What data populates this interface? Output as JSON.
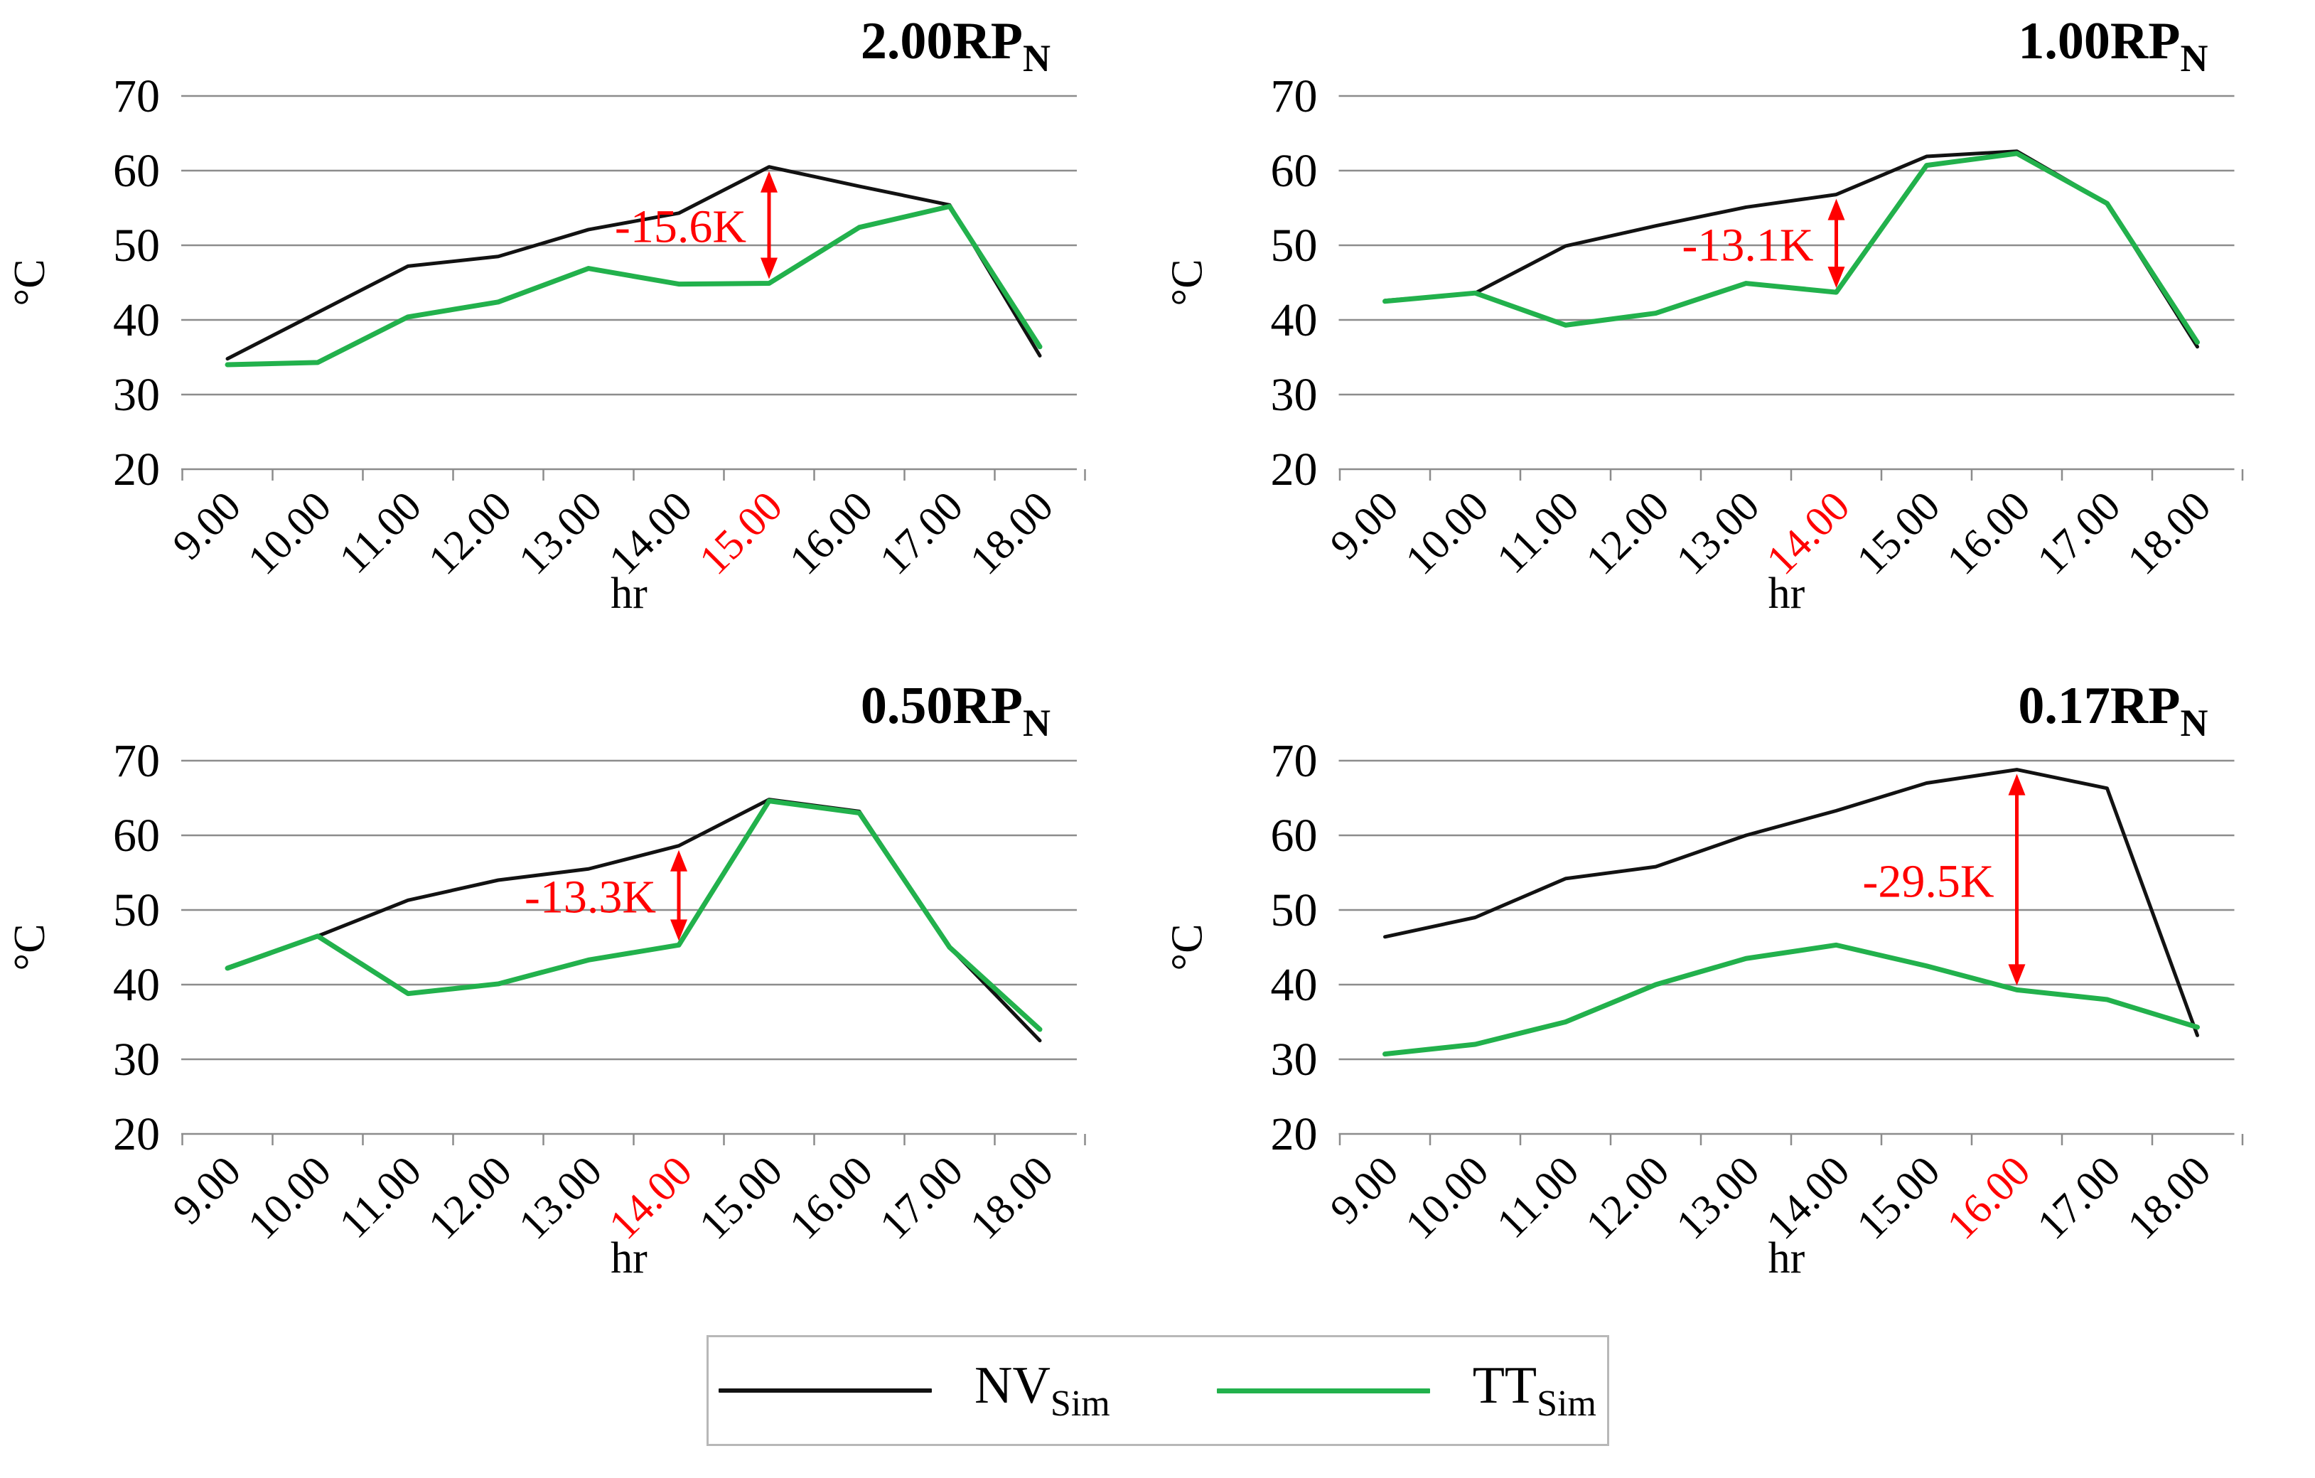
{
  "page": {
    "background": "#ffffff"
  },
  "chart_data": {
    "type": "line",
    "x_categories": [
      "9.00",
      "10.00",
      "11.00",
      "12.00",
      "13.00",
      "14.00",
      "15.00",
      "16.00",
      "17.00",
      "18.00"
    ],
    "xlabel": "hr",
    "ylabel": "°C",
    "ylim": [
      20,
      70
    ],
    "ytick_step": 10,
    "ytick_labels": [
      "70",
      "60",
      "50",
      "40",
      "30",
      "20"
    ],
    "grid": "horizontal",
    "colors": {
      "nv": "#121212",
      "tt": "#22B14C",
      "annotation": "#FF0000",
      "gridline": "#8C8C8C",
      "tick_text": "#000000"
    },
    "legend": {
      "position": "bottom-center",
      "items": [
        {
          "label": "NV",
          "sub": "Sim",
          "color": "#121212"
        },
        {
          "label": "TT",
          "sub": "Sim",
          "color": "#22B14C"
        }
      ]
    },
    "panels": [
      {
        "title": "2.00RP",
        "title_sub": "N",
        "highlight_tick": "15.00",
        "highlight_index": 6,
        "annotation": {
          "label": "-15.6K",
          "x": "15.00",
          "x_index": 6,
          "delta_k": -15.6
        },
        "series": [
          {
            "name": "NV_Sim",
            "color_key": "nv",
            "values": [
              34.8,
              41.0,
              47.2,
              48.5,
              52.1,
              54.3,
              60.5,
              57.9,
              55.4,
              35.2
            ]
          },
          {
            "name": "TT_Sim",
            "color_key": "tt",
            "values": [
              34.0,
              34.3,
              40.4,
              42.4,
              46.9,
              44.8,
              44.9,
              52.4,
              55.2,
              36.4
            ]
          }
        ]
      },
      {
        "title": "1.00RP",
        "title_sub": "N",
        "highlight_tick": "14.00",
        "highlight_index": 5,
        "annotation": {
          "label": "-13.1K",
          "x": "14.00",
          "x_index": 5,
          "delta_k": -13.1
        },
        "series": [
          {
            "name": "NV_Sim",
            "color_key": "nv",
            "values": [
              42.6,
              43.6,
              49.9,
              52.6,
              55.1,
              56.8,
              61.9,
              62.6,
              55.6,
              36.4
            ]
          },
          {
            "name": "TT_Sim",
            "color_key": "tt",
            "values": [
              42.5,
              43.6,
              39.3,
              40.9,
              44.9,
              43.7,
              60.7,
              62.3,
              55.6,
              37.0
            ]
          }
        ]
      },
      {
        "title": "0.50RP",
        "title_sub": "N",
        "highlight_tick": "14.00",
        "highlight_index": 5,
        "annotation": {
          "label": "-13.3K",
          "x": "14.00",
          "x_index": 5,
          "delta_k": -13.3
        },
        "series": [
          {
            "name": "NV_Sim",
            "color_key": "nv",
            "values": [
              42.3,
              46.5,
              51.3,
              54.0,
              55.5,
              58.6,
              64.8,
              63.2,
              45.0,
              32.5
            ]
          },
          {
            "name": "TT_Sim",
            "color_key": "tt",
            "values": [
              42.2,
              46.5,
              38.8,
              40.1,
              43.3,
              45.3,
              64.6,
              63.0,
              45.0,
              34.0
            ]
          }
        ]
      },
      {
        "title": "0.17RP",
        "title_sub": "N",
        "highlight_tick": "16.00",
        "highlight_index": 7,
        "annotation": {
          "label": "-29.5K",
          "x": "16.00",
          "x_index": 7,
          "delta_k": -29.5
        },
        "series": [
          {
            "name": "NV_Sim",
            "color_key": "nv",
            "values": [
              46.4,
              49.0,
              54.2,
              55.8,
              60.0,
              63.3,
              67.0,
              68.8,
              66.3,
              33.2
            ]
          },
          {
            "name": "TT_Sim",
            "color_key": "tt",
            "values": [
              30.7,
              32.0,
              35.0,
              40.0,
              43.5,
              45.3,
              42.5,
              39.3,
              38.0,
              34.3
            ]
          }
        ]
      }
    ]
  }
}
